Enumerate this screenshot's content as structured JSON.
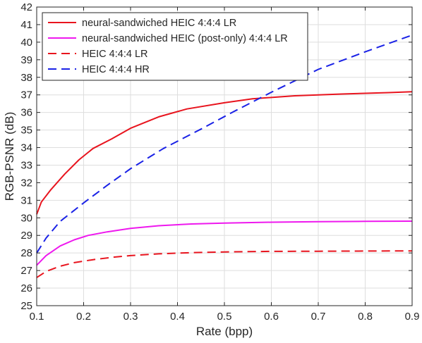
{
  "chart_data": {
    "type": "line",
    "title": "",
    "xlabel": "Rate (bpp)",
    "ylabel": "RGB-PSNR (dB)",
    "xlim": [
      0.1,
      0.9
    ],
    "ylim": [
      25,
      42
    ],
    "xticks": [
      0.1,
      0.2,
      0.3,
      0.4,
      0.5,
      0.6,
      0.7,
      0.8,
      0.9
    ],
    "yticks": [
      25,
      26,
      27,
      28,
      29,
      30,
      31,
      32,
      33,
      34,
      35,
      36,
      37,
      38,
      39,
      40,
      41,
      42
    ],
    "grid": true,
    "legend_position": "top-left",
    "series": [
      {
        "name": "neural-sandwiched HEIC 4:4:4 LR",
        "color": "#e8141e",
        "dash": "solid",
        "x": [
          0.1,
          0.11,
          0.13,
          0.16,
          0.19,
          0.22,
          0.26,
          0.3,
          0.36,
          0.42,
          0.5,
          0.56,
          0.65,
          0.75,
          0.85,
          0.9
        ],
        "y": [
          30.2,
          30.9,
          31.6,
          32.5,
          33.3,
          33.95,
          34.5,
          35.1,
          35.75,
          36.2,
          36.55,
          36.78,
          36.95,
          37.05,
          37.13,
          37.18
        ]
      },
      {
        "name": "neural-sandwiched HEIC (post-only) 4:4:4 LR",
        "color": "#ee18ee",
        "dash": "solid",
        "x": [
          0.1,
          0.12,
          0.15,
          0.18,
          0.21,
          0.25,
          0.3,
          0.36,
          0.43,
          0.5,
          0.6,
          0.7,
          0.8,
          0.9
        ],
        "y": [
          27.3,
          27.85,
          28.4,
          28.75,
          29.0,
          29.2,
          29.4,
          29.55,
          29.65,
          29.7,
          29.75,
          29.78,
          29.8,
          29.81
        ]
      },
      {
        "name": "HEIC 4:4:4 LR",
        "color": "#e8141e",
        "dash": "dashed",
        "x": [
          0.1,
          0.12,
          0.15,
          0.18,
          0.22,
          0.26,
          0.3,
          0.36,
          0.43,
          0.5,
          0.6,
          0.7,
          0.8,
          0.9
        ],
        "y": [
          26.6,
          26.95,
          27.25,
          27.45,
          27.62,
          27.75,
          27.85,
          27.95,
          28.02,
          28.06,
          28.09,
          28.1,
          28.11,
          28.12
        ]
      },
      {
        "name": "HEIC 4:4:4 HR",
        "color": "#1a22e6",
        "dash": "dashed",
        "x": [
          0.1,
          0.12,
          0.15,
          0.2,
          0.25,
          0.3,
          0.37,
          0.45,
          0.52,
          0.6,
          0.7,
          0.8,
          0.9
        ],
        "y": [
          28.0,
          28.85,
          29.8,
          30.85,
          31.85,
          32.8,
          33.95,
          35.05,
          36.05,
          37.15,
          38.45,
          39.45,
          40.4
        ]
      }
    ]
  }
}
